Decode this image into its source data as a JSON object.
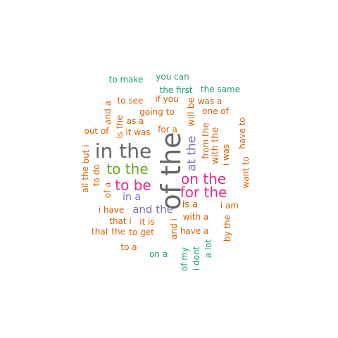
{
  "palette": {
    "orange": "#d95f02",
    "teal": "#1b9e77",
    "purple": "#7570b3",
    "magenta": "#e7298a",
    "green": "#66a61e",
    "gray": "#666666"
  },
  "words": [
    {
      "text": "of the",
      "color": "gray",
      "weight": 100
    },
    {
      "text": "in the",
      "color": "gray",
      "weight": 90
    },
    {
      "text": "on the",
      "color": "magenta",
      "weight": 60
    },
    {
      "text": "for the",
      "color": "magenta",
      "weight": 60
    },
    {
      "text": "to the",
      "color": "green",
      "weight": 55
    },
    {
      "text": "to be",
      "color": "magenta",
      "weight": 55
    },
    {
      "text": "at the",
      "color": "purple",
      "weight": 48
    },
    {
      "text": "and the",
      "color": "purple",
      "weight": 40
    },
    {
      "text": "in a",
      "color": "purple",
      "weight": 35
    },
    {
      "text": "is a",
      "color": "orange",
      "weight": 32
    },
    {
      "text": "with the",
      "color": "orange",
      "weight": 30
    },
    {
      "text": "will be",
      "color": "orange",
      "weight": 28
    },
    {
      "text": "from the",
      "color": "orange",
      "weight": 26
    },
    {
      "text": "i was",
      "color": "orange",
      "weight": 24
    },
    {
      "text": "is the",
      "color": "orange",
      "weight": 24
    },
    {
      "text": "to make",
      "color": "teal",
      "weight": 20
    },
    {
      "text": "you can",
      "color": "teal",
      "weight": 20
    },
    {
      "text": "the first",
      "color": "teal",
      "weight": 20
    },
    {
      "text": "the same",
      "color": "teal",
      "weight": 20
    },
    {
      "text": "to see",
      "color": "orange",
      "weight": 20
    },
    {
      "text": "if you",
      "color": "orange",
      "weight": 20
    },
    {
      "text": "was a",
      "color": "orange",
      "weight": 20
    },
    {
      "text": "and a",
      "color": "orange",
      "weight": 20
    },
    {
      "text": "as a",
      "color": "orange",
      "weight": 20
    },
    {
      "text": "going to",
      "color": "orange",
      "weight": 20
    },
    {
      "text": "one of",
      "color": "orange",
      "weight": 20
    },
    {
      "text": "out of",
      "color": "orange",
      "weight": 20
    },
    {
      "text": "it was",
      "color": "orange",
      "weight": 20
    },
    {
      "text": "for a",
      "color": "orange",
      "weight": 20
    },
    {
      "text": "want to",
      "color": "orange",
      "weight": 20
    },
    {
      "text": "have to",
      "color": "orange",
      "weight": 20
    },
    {
      "text": "but i",
      "color": "orange",
      "weight": 20
    },
    {
      "text": "to do",
      "color": "orange",
      "weight": 20
    },
    {
      "text": "all the",
      "color": "orange",
      "weight": 20
    },
    {
      "text": "of a",
      "color": "orange",
      "weight": 20
    },
    {
      "text": "i have",
      "color": "orange",
      "weight": 20
    },
    {
      "text": "i am",
      "color": "orange",
      "weight": 20
    },
    {
      "text": "that i",
      "color": "orange",
      "weight": 20
    },
    {
      "text": "it is",
      "color": "orange",
      "weight": 20
    },
    {
      "text": "with a",
      "color": "orange",
      "weight": 20
    },
    {
      "text": "and i",
      "color": "orange",
      "weight": 20
    },
    {
      "text": "by the",
      "color": "orange",
      "weight": 20
    },
    {
      "text": "that the",
      "color": "orange",
      "weight": 20
    },
    {
      "text": "to get",
      "color": "orange",
      "weight": 20
    },
    {
      "text": "have a",
      "color": "orange",
      "weight": 20
    },
    {
      "text": "to a",
      "color": "orange",
      "weight": 20
    },
    {
      "text": "on a",
      "color": "teal",
      "weight": 20
    },
    {
      "text": "of my",
      "color": "teal",
      "weight": 20
    },
    {
      "text": "i dont",
      "color": "teal",
      "weight": 20
    },
    {
      "text": "a lot",
      "color": "teal",
      "weight": 20
    }
  ]
}
